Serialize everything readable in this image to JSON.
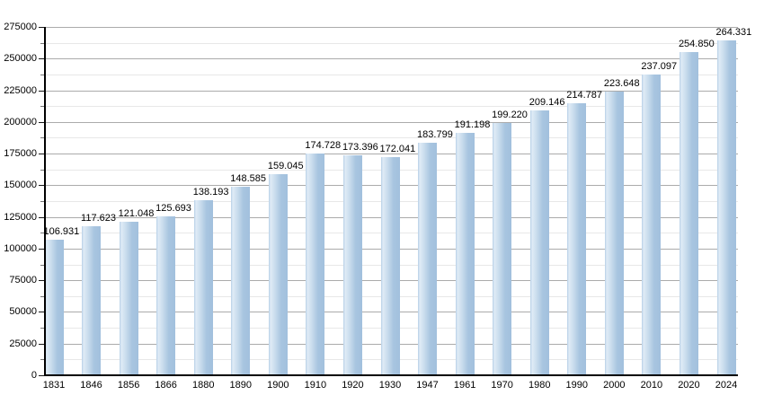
{
  "chart_data": {
    "type": "bar",
    "title": "",
    "categories": [
      "1831",
      "1846",
      "1856",
      "1866",
      "1880",
      "1890",
      "1900",
      "1910",
      "1920",
      "1930",
      "1947",
      "1961",
      "1970",
      "1980",
      "1990",
      "2000",
      "2010",
      "2020",
      "2024"
    ],
    "values": [
      106931,
      117623,
      121048,
      125693,
      138193,
      148585,
      159045,
      174728,
      173396,
      172041,
      183799,
      191198,
      199220,
      209146,
      214787,
      223648,
      237097,
      254850,
      264331
    ],
    "bar_labels": [
      "106.931",
      "117.623",
      "121.048",
      "125.693",
      "138.193",
      "148.585",
      "159.045",
      "174.728",
      "173.396",
      "172.041",
      "183.799",
      "191.198",
      "199.220",
      "209.146",
      "214.787",
      "223.648",
      "237.097",
      "254.850",
      "264.331"
    ],
    "y_tick_labels": [
      "0",
      "25000",
      "50000",
      "75000",
      "100000",
      "125000",
      "150000",
      "175000",
      "200000",
      "225000",
      "250000",
      "275000"
    ],
    "xlabel": "",
    "ylabel": "",
    "ylim": [
      0,
      275000
    ],
    "y_major_step": 25000,
    "y_minor_step": 12500,
    "grid": "major-and-minor horizontal gridlines",
    "legend": "none",
    "colors": {
      "bar_main": "#a8c5e0",
      "bar_highlight": "#dfebf6",
      "grid_major": "#ababab",
      "grid_minor": "#e8e8e8",
      "axis": "#000000",
      "text": "#000000",
      "background": "#ffffff"
    }
  }
}
